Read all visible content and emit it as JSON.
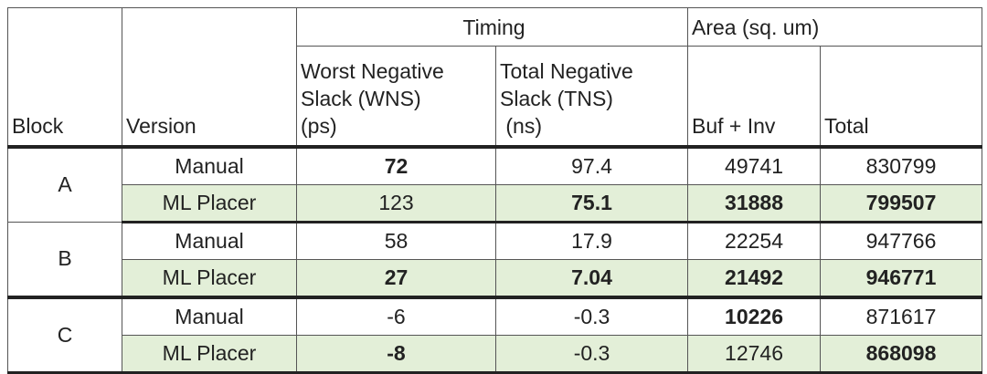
{
  "header": {
    "block": "Block",
    "version": "Version",
    "timing": "Timing",
    "area": "Area (sq. um)",
    "wns_line1": "Worst Negative",
    "wns_line2": "Slack (WNS)",
    "wns_line3": "(ps)",
    "tns_line1": "Total Negative",
    "tns_line2": "Slack (TNS)",
    "tns_line3": " (ns)",
    "buf_inv": "Buf + Inv",
    "total": "Total"
  },
  "rows": [
    {
      "block": "A",
      "version": "Manual",
      "wns": "72",
      "tns": "97.4",
      "buf_inv": "49741",
      "total": "830799"
    },
    {
      "version": "ML Placer",
      "wns": "123",
      "tns": "75.1",
      "buf_inv": "31888",
      "total": "799507"
    },
    {
      "block": "B",
      "version": "Manual",
      "wns": "58",
      "tns": "17.9",
      "buf_inv": "22254",
      "total": "947766"
    },
    {
      "version": "ML Placer",
      "wns": "27",
      "tns": "7.04",
      "buf_inv": "21492",
      "total": "946771"
    },
    {
      "block": "C",
      "version": "Manual",
      "wns": "-6",
      "tns": "-0.3",
      "buf_inv": "10226",
      "total": "871617"
    },
    {
      "version": "ML Placer",
      "wns": "-8",
      "tns": "-0.3",
      "buf_inv": "12746",
      "total": "868098"
    }
  ],
  "colors": {
    "ml_row_bg": "#e3efd8",
    "border": "#555555",
    "thick_border": "#222222"
  }
}
